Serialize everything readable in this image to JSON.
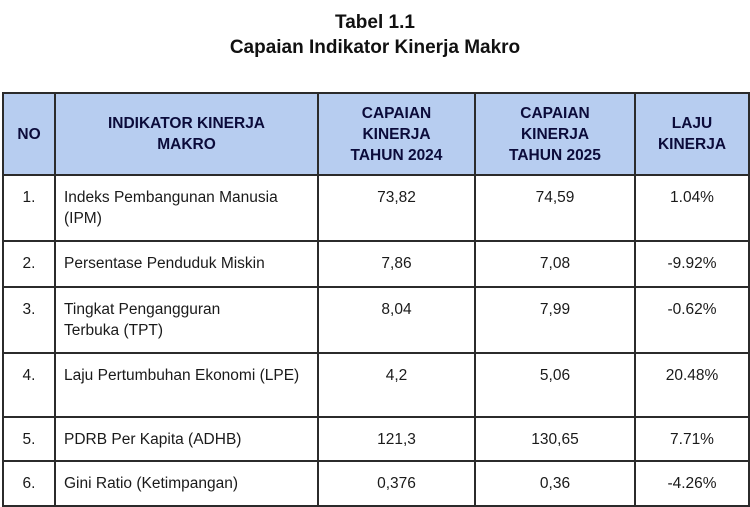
{
  "title": {
    "line1": "Tabel 1.1",
    "line2": "Capaian Indikator Kinerja Makro"
  },
  "table": {
    "headers": {
      "no": "NO",
      "indikator": "INDIKATOR KINERJA MAKRO",
      "capaian_2024": "CAPAIAN KINERJA TAHUN 2024",
      "capaian_2025": "CAPAIAN KINERJA TAHUN 2025",
      "laju": "LAJU KINERJA"
    },
    "rows": [
      {
        "no": "1.",
        "indikator": "Indeks Pembangunan Manusia (IPM)",
        "capaian_2024": "73,82",
        "capaian_2025": "74,59",
        "laju": "1.04%"
      },
      {
        "no": "2.",
        "indikator": "Persentase Penduduk Miskin",
        "capaian_2024": "7,86",
        "capaian_2025": "7,08",
        "laju": "-9.92%"
      },
      {
        "no": "3.",
        "indikator": "Tingkat Pengangguran Terbuka (TPT)",
        "capaian_2024": "8,04",
        "capaian_2025": "7,99",
        "laju": "-0.62%"
      },
      {
        "no": "4.",
        "indikator": "Laju Pertumbuhan Ekonomi (LPE)",
        "capaian_2024": "4,2",
        "capaian_2025": "5,06",
        "laju": "20.48%"
      },
      {
        "no": "5.",
        "indikator": "PDRB Per Kapita (ADHB)",
        "capaian_2024": "121,3",
        "capaian_2025": "130,65",
        "laju": "7.71%"
      },
      {
        "no": "6.",
        "indikator": "Gini Ratio (Ketimpangan)",
        "capaian_2024": "0,376",
        "capaian_2025": "0,36",
        "laju": "-4.26%"
      }
    ]
  }
}
